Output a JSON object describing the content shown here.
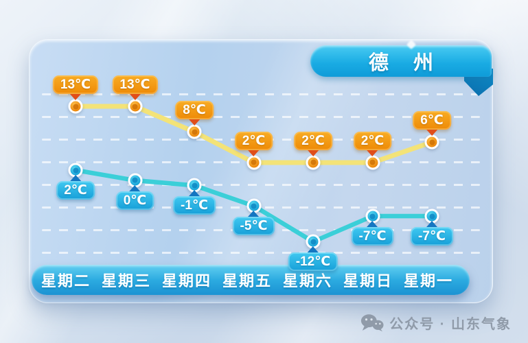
{
  "header": {
    "city": "德 州"
  },
  "chart_data": {
    "type": "line",
    "title": "德 州",
    "categories": [
      "星期二",
      "星期三",
      "星期四",
      "星期五",
      "星期六",
      "星期日",
      "星期一"
    ],
    "series": [
      {
        "name": "high",
        "color": "#f3e378",
        "values": [
          13,
          13,
          8,
          2,
          2,
          2,
          6
        ],
        "labels": [
          "13℃",
          "13℃",
          "8℃",
          "2℃",
          "2℃",
          "2℃",
          "6℃"
        ]
      },
      {
        "name": "low",
        "color": "#3bcfd8",
        "values": [
          2,
          0,
          -1,
          -5,
          -12,
          -7,
          -7
        ],
        "labels": [
          "2℃",
          "0℃",
          "-1℃",
          "-5℃",
          "-12℃",
          "-7℃",
          "-7℃"
        ]
      }
    ],
    "unit": "℃",
    "grid": "dashed-horizontal",
    "legend": "none"
  },
  "watermark": {
    "icon": "wechat-icon",
    "text": "公众号 · 山东气象"
  },
  "colors": {
    "high_badge": "#ee8a06",
    "high_arrow": "#e04e1a",
    "low_badge": "#169fd8",
    "low_arrow": "#1476c1",
    "high_line": "#f3e378",
    "low_line": "#3bcfd8",
    "ribbon": "#19abe3",
    "day_bar": "#2baae0"
  }
}
